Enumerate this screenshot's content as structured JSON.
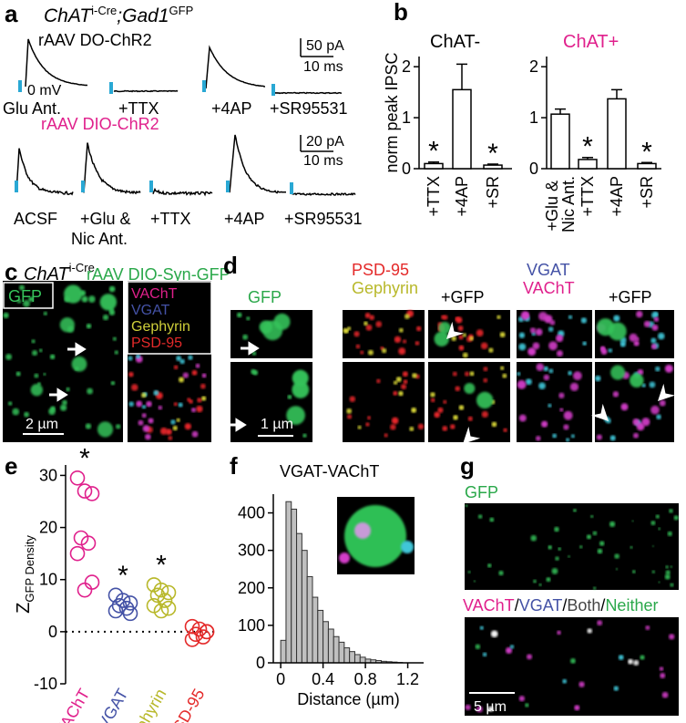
{
  "figure": {
    "a": {
      "letter": "a",
      "genotype": {
        "gene1": "ChAT",
        "sup1": "i-Cre",
        "gene2": ";Gad1",
        "sup2": "GFP"
      },
      "row1": {
        "title": "rAAV DO-ChR2",
        "scale_y": "50 pA",
        "scale_x": "10 ms",
        "holding": "0 mV",
        "labels": [
          "Glu Ant.",
          "+TTX",
          "+4AP",
          "+SR95531"
        ]
      },
      "row2": {
        "title": "rAAV DIO-ChR2",
        "scale_y": "20 pA",
        "scale_x": "10 ms",
        "labels": [
          "ACSF",
          "+Glu &",
          "Nic Ant.",
          "+TTX",
          "+4AP",
          "+SR95531"
        ]
      }
    },
    "b": {
      "letter": "b"
    },
    "c": {
      "letter": "c",
      "gene": "ChAT",
      "sup": "i-Cre",
      "virus": "rAAV DIO-Syn-GFP",
      "image_label": "GFP",
      "legend": [
        "VAChT",
        "VGAT",
        "Gephyrin",
        "PSD-95"
      ],
      "scale": "2 µm"
    },
    "d": {
      "letter": "d",
      "col1": "GFP",
      "col2_top": "PSD-95",
      "col2_bottom": "Gephyrin",
      "col3": "+GFP",
      "col4_top": "VGAT",
      "col4_bottom": "VAChT",
      "col5": "+GFP",
      "scale": "1 µm"
    },
    "e": {
      "letter": "e"
    },
    "f": {
      "letter": "f"
    },
    "g": {
      "letter": "g",
      "image_label": "GFP",
      "legend": [
        "VAChT",
        "/",
        "VGAT",
        "/",
        "Both",
        "/",
        "Neither"
      ],
      "scale": "5 µm"
    }
  },
  "chart_data": [
    {
      "type": "bar",
      "title": "ChAT-",
      "ylabel": "norm peak IPSC",
      "categories": [
        "+TTX",
        "+4AP",
        "+SR"
      ],
      "values": [
        0.1,
        1.55,
        0.07
      ],
      "errors": [
        0.03,
        0.5,
        0.02
      ],
      "significance": [
        "*",
        null,
        "*"
      ],
      "color": "#ffffff",
      "title_color": "#000000",
      "ylim": [
        0,
        2.2
      ],
      "yticks": [
        0,
        1,
        2
      ]
    },
    {
      "type": "bar",
      "title": "ChAT+",
      "categories": [
        "+Glu & Nic Ant.",
        "+TTX",
        "+4AP",
        "+SR"
      ],
      "values": [
        1.07,
        0.18,
        1.37,
        0.1
      ],
      "errors": [
        0.1,
        0.04,
        0.18,
        0.02
      ],
      "significance": [
        null,
        "*",
        null,
        "*"
      ],
      "color": "#ffffff",
      "title_color": "#e0208c",
      "ylim": [
        0,
        2.2
      ],
      "yticks": [
        0,
        1,
        2
      ]
    },
    {
      "type": "strip",
      "ylabel": "Z",
      "ylabel_sub": "GFP Density",
      "categories": [
        "VAChT",
        "VGAT",
        "Gephyrin",
        "PSD-95"
      ],
      "colors": [
        "#e0208c",
        "#4452a6",
        "#b8b82a",
        "#e42a2a"
      ],
      "values": [
        [
          29.5,
          27,
          26.5,
          18,
          17,
          15,
          9.5,
          8
        ],
        [
          7,
          6,
          5.5,
          5,
          4.5,
          4,
          3.5
        ],
        [
          9,
          8,
          7.5,
          7,
          6,
          5,
          4.5,
          4
        ],
        [
          1,
          0.5,
          0,
          -0.5,
          -1,
          -1.5,
          0
        ]
      ],
      "significance": [
        "*",
        "*",
        "*",
        null
      ],
      "reference_line": 0,
      "ylim": [
        -10,
        32
      ],
      "yticks": [
        -10,
        0,
        10,
        20,
        30
      ]
    },
    {
      "type": "histogram",
      "title": "VGAT-VAChT",
      "xlabel": "Distance (µm)",
      "bins": [
        0,
        0.05,
        0.1,
        0.15,
        0.2,
        0.25,
        0.3,
        0.35,
        0.4,
        0.45,
        0.5,
        0.55,
        0.6,
        0.65,
        0.7,
        0.75,
        0.8,
        0.85,
        0.9,
        0.95,
        1,
        1.05,
        1.1,
        1.15
      ],
      "counts": [
        60,
        430,
        410,
        345,
        300,
        230,
        175,
        140,
        110,
        90,
        70,
        55,
        40,
        30,
        22,
        15,
        10,
        8,
        6,
        4,
        3,
        2,
        1
      ],
      "color": "#c0c0c0",
      "xlim": [
        -0.07,
        1.35
      ],
      "xticks": [
        0,
        0.4,
        0.8,
        1.2
      ],
      "ylim": [
        0,
        450
      ],
      "yticks": [
        0,
        100,
        200,
        300,
        400
      ]
    }
  ]
}
